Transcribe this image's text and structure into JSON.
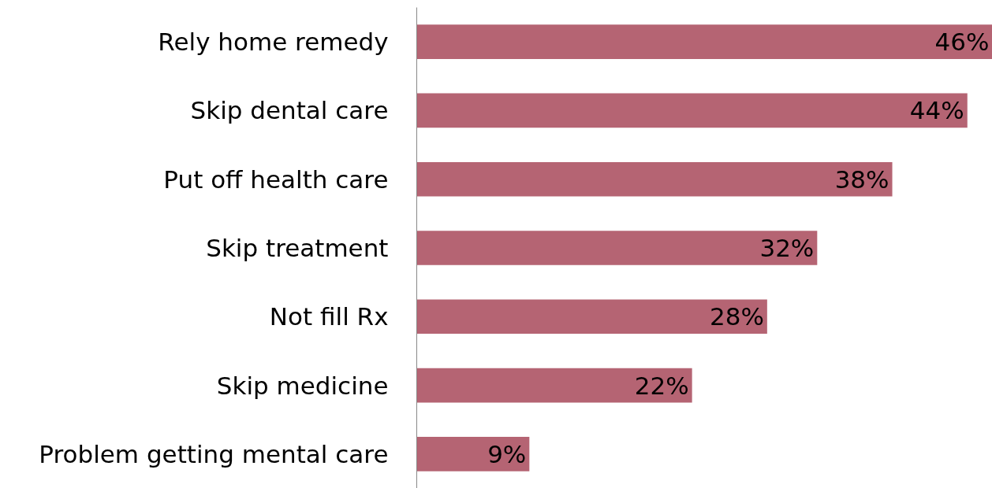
{
  "chart_data": {
    "type": "bar",
    "orientation": "horizontal",
    "categories": [
      "Rely home remedy",
      "Skip dental care",
      "Put off health care",
      "Skip treatment",
      "Not fill Rx",
      "Skip medicine",
      "Problem getting mental care"
    ],
    "series": [
      {
        "color": "#b56473",
        "values": [
          46,
          44,
          38,
          32,
          28,
          22,
          9
        ],
        "value_labels": [
          "46%",
          "44%",
          "38%",
          "32%",
          "28%",
          "22%",
          "9%"
        ]
      }
    ],
    "tick_labels": "y"
  }
}
